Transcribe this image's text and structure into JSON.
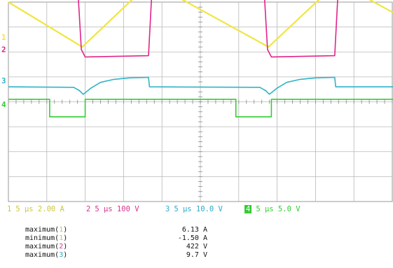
{
  "chart_data": {
    "type": "line",
    "grid": true,
    "divisions": {
      "x": 10,
      "y": 8
    },
    "time_per_div": "5 μs",
    "series": [
      {
        "name": "1",
        "color": "#f0e640",
        "scale": "2.00 A",
        "marker": "1",
        "marker_level": 2.6,
        "x": [
          0,
          3.85,
          7.4,
          13.55,
          17.15,
          20,
          20.5
        ],
        "y": [
          4.0,
          2.2,
          4.8,
          2.2,
          4.8,
          3.6,
          3.4
        ]
      },
      {
        "name": "2",
        "color": "#e0248a",
        "scale": "100 V",
        "marker": "2",
        "marker_level": 2.1,
        "x": [
          0,
          3.6,
          3.8,
          4.0,
          7.3,
          7.5,
          7.7,
          13.3,
          13.5,
          13.7,
          17.0,
          17.2,
          17.4,
          20.5
        ],
        "y": [
          4.75,
          4.75,
          2.1,
          1.8,
          1.85,
          4.8,
          4.85,
          4.75,
          2.1,
          1.8,
          1.85,
          4.8,
          4.85,
          4.75
        ]
      },
      {
        "name": "3",
        "color": "#2fb4c8",
        "scale": "10.0 V",
        "marker": "3",
        "marker_level": 0.85,
        "x": [
          0,
          3.4,
          3.7,
          3.9,
          4.3,
          4.8,
          5.5,
          6.3,
          7.25,
          7.3,
          7.35,
          13.1,
          13.4,
          13.6,
          14.0,
          14.5,
          15.2,
          16.0,
          16.95,
          17.0,
          17.05,
          20.5
        ],
        "y": [
          0.6,
          0.58,
          0.45,
          0.3,
          0.55,
          0.78,
          0.9,
          0.96,
          0.98,
          0.98,
          0.6,
          0.58,
          0.45,
          0.3,
          0.55,
          0.78,
          0.9,
          0.96,
          0.98,
          0.98,
          0.6,
          0.6
        ]
      },
      {
        "name": "4",
        "color": "#33cc33",
        "scale": "5.0 V",
        "marker": "4",
        "marker_level": -0.1,
        "x": [
          0,
          2.15,
          2.15,
          4.0,
          4.0,
          11.85,
          11.85,
          13.7,
          13.7,
          20.5
        ],
        "y": [
          0.1,
          0.1,
          -0.6,
          -0.6,
          0.1,
          0.1,
          -0.6,
          -0.6,
          0.1,
          0.1
        ]
      }
    ]
  },
  "channels": [
    {
      "num": "1",
      "info": "5 μs 2.00 A",
      "color": "#ccc640"
    },
    {
      "num": "2",
      "info": "5 μs 100 V",
      "color": "#d8338f"
    },
    {
      "num": "3",
      "info": "5 μs 10.0 V",
      "color": "#2aaac8"
    },
    {
      "num": "4",
      "info": "5 μs 5.0 V",
      "color": "#33cc33"
    }
  ],
  "measurements": [
    {
      "prefix": "maximum",
      "ch": "1",
      "color": "#ccc640",
      "value": "6.13 A"
    },
    {
      "prefix": "minimum",
      "ch": "1",
      "color": "#ccc640",
      "value": "-1.50 A"
    },
    {
      "prefix": "maximum",
      "ch": "2",
      "color": "#d8338f",
      "value": "422 V"
    },
    {
      "prefix": "maximum",
      "ch": "3",
      "color": "#2aaac8",
      "value": "9.7 V"
    }
  ]
}
